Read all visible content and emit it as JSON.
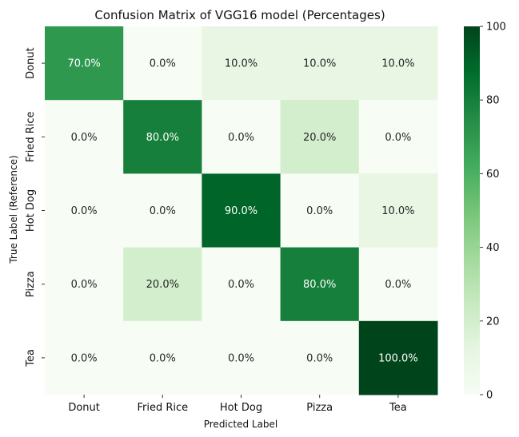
{
  "chart_data": {
    "type": "heatmap",
    "title": "Confusion Matrix of VGG16 model (Percentages)",
    "xlabel": "Predicted Label",
    "ylabel": "True Label (Reference)",
    "x_categories": [
      "Donut",
      "Fried Rice",
      "Hot Dog",
      "Pizza",
      "Tea"
    ],
    "y_categories": [
      "Donut",
      "Fried Rice",
      "Hot Dog",
      "Pizza",
      "Tea"
    ],
    "values": [
      [
        70,
        0,
        10,
        10,
        10
      ],
      [
        0,
        80,
        0,
        20,
        0
      ],
      [
        0,
        0,
        90,
        0,
        10
      ],
      [
        0,
        20,
        0,
        80,
        0
      ],
      [
        0,
        0,
        0,
        0,
        100
      ]
    ],
    "cell_labels": [
      [
        "70.0%",
        "0.0%",
        "10.0%",
        "10.0%",
        "10.0%"
      ],
      [
        "0.0%",
        "80.0%",
        "0.0%",
        "20.0%",
        "0.0%"
      ],
      [
        "0.0%",
        "0.0%",
        "90.0%",
        "0.0%",
        "10.0%"
      ],
      [
        "0.0%",
        "20.0%",
        "0.0%",
        "80.0%",
        "0.0%"
      ],
      [
        "0.0%",
        "0.0%",
        "0.0%",
        "0.0%",
        "100.0%"
      ]
    ],
    "colorbar": {
      "range": [
        0,
        100
      ],
      "ticks": [
        0,
        20,
        40,
        60,
        80,
        100
      ],
      "colormap": "Greens"
    }
  }
}
